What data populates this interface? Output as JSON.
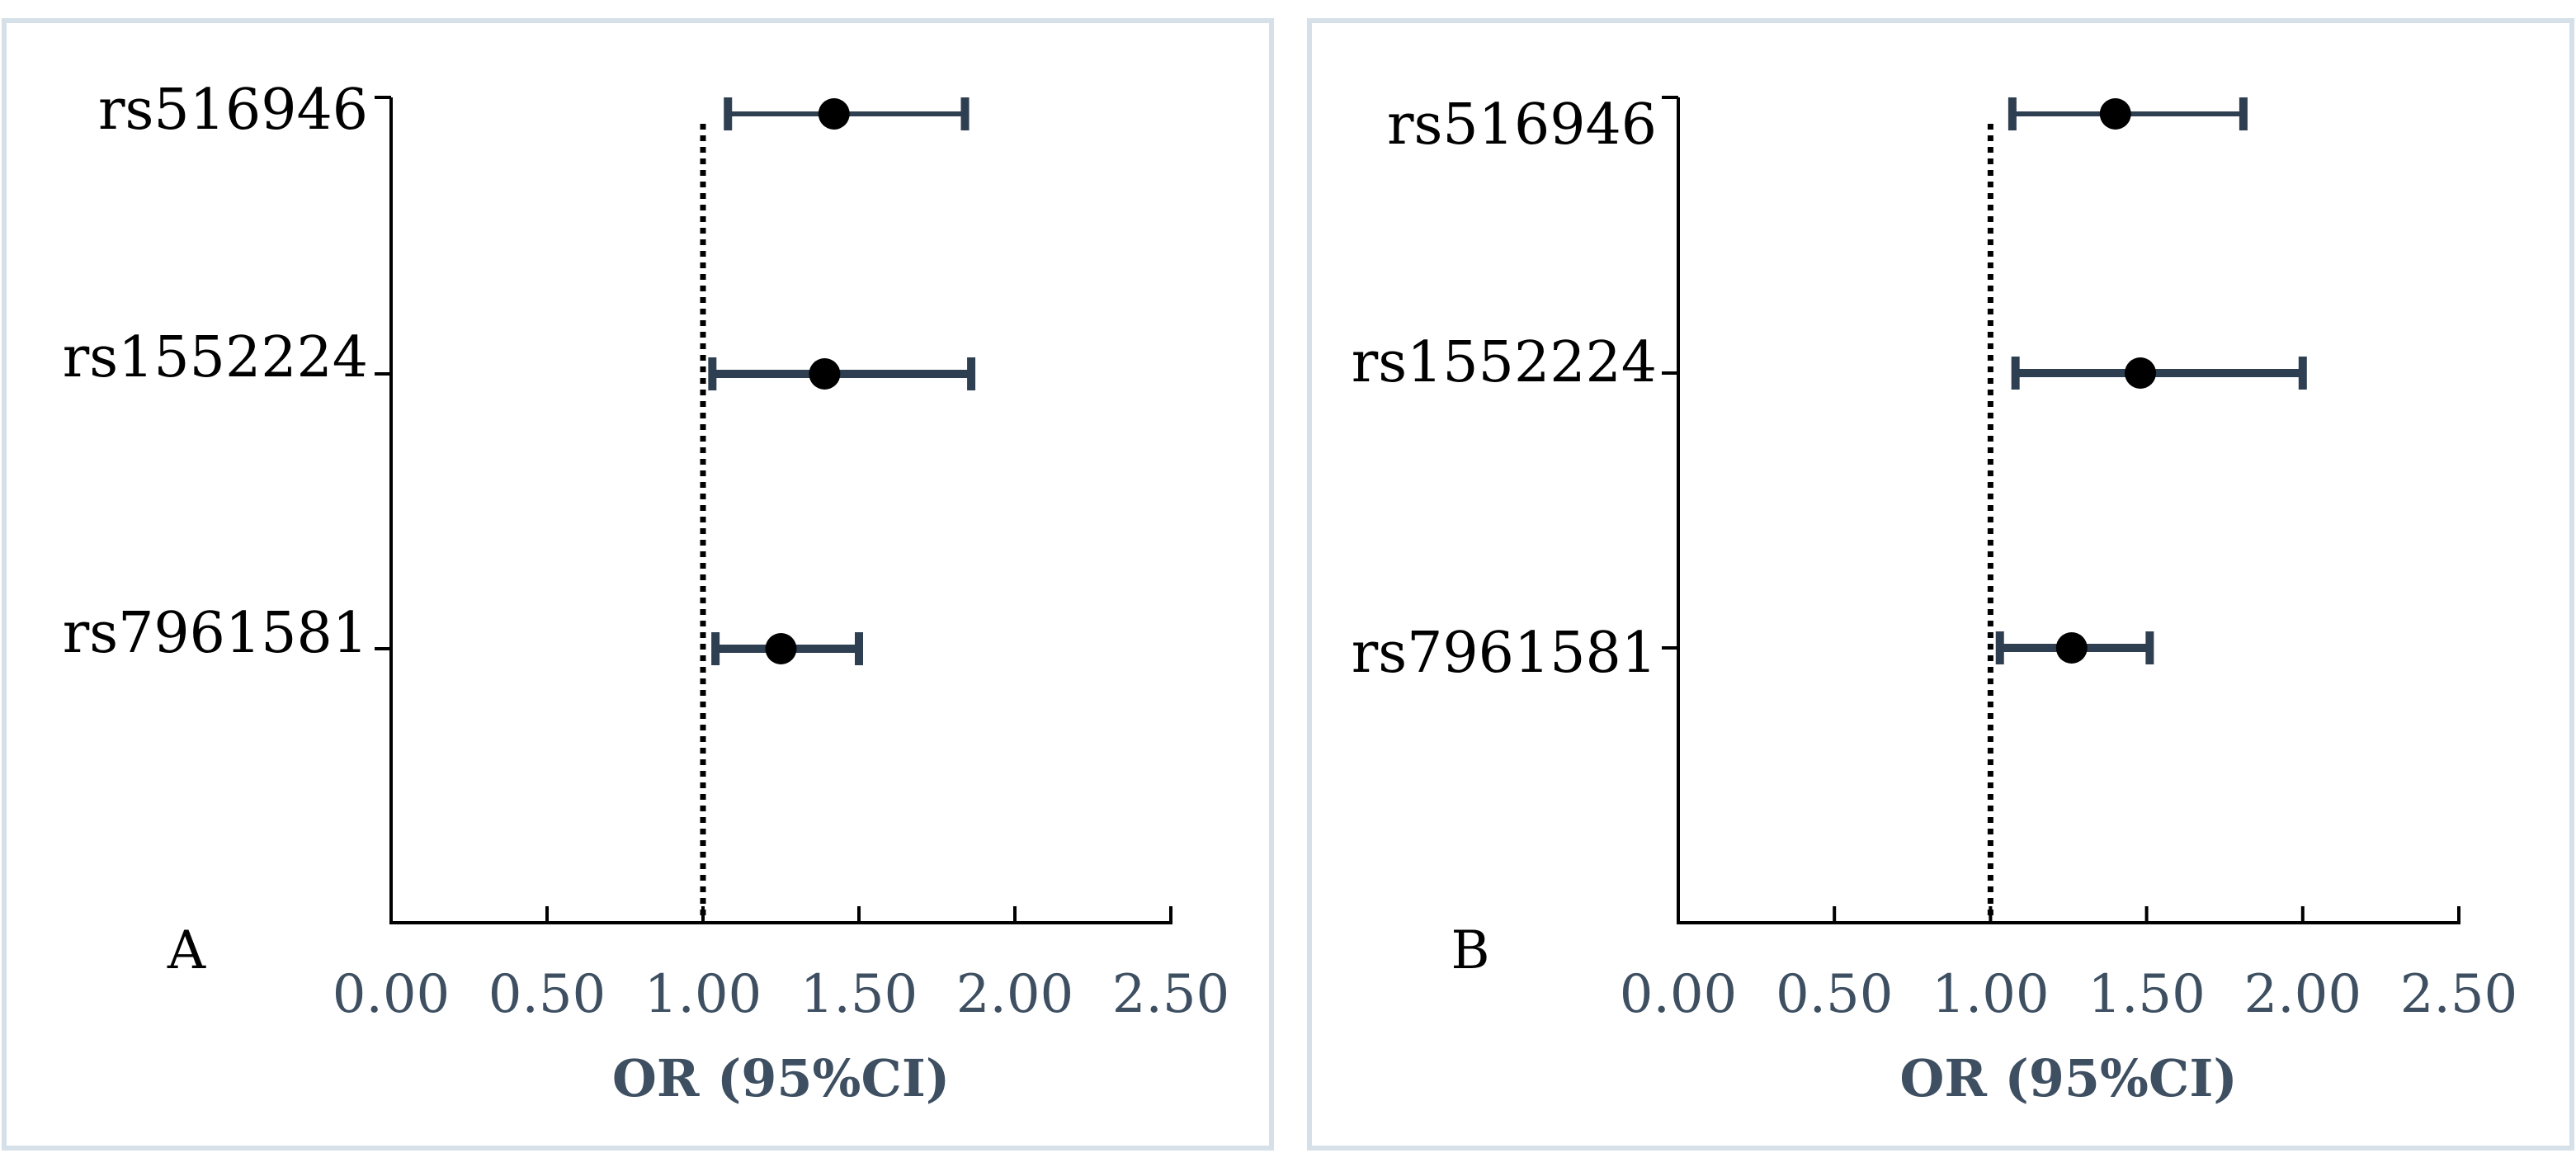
{
  "colors": {
    "errorbar": "#2f3f52",
    "point": "#000000",
    "axis": "#000000",
    "tick_label": "#3d4f61",
    "axis_label": "#3d4f61",
    "panel_border": "#d6e0e8"
  },
  "chart_data": [
    {
      "type": "scatter",
      "panel_label": "A",
      "xlabel": "OR (95%CI)",
      "ylabel": "",
      "xlim": [
        0,
        2.5
      ],
      "xticks": [
        "0.00",
        "0.50",
        "1.00",
        "1.50",
        "2.00",
        "2.50"
      ],
      "reference_line": 1.0,
      "categories": [
        "rs516946",
        "rs1552224",
        "rs7961581"
      ],
      "or": [
        1.42,
        1.39,
        1.25
      ],
      "ci_low": [
        1.08,
        1.03,
        1.04
      ],
      "ci_high": [
        1.84,
        1.86,
        1.5
      ],
      "grid": false
    },
    {
      "type": "scatter",
      "panel_label": "B",
      "xlabel": "OR (95%CI)",
      "ylabel": "",
      "xlim": [
        0,
        2.5
      ],
      "xticks": [
        "0.00",
        "0.50",
        "1.00",
        "1.50",
        "2.00",
        "2.50"
      ],
      "reference_line": 1.0,
      "categories": [
        "rs516946",
        "rs1552224",
        "rs7961581"
      ],
      "or": [
        1.4,
        1.48,
        1.26
      ],
      "ci_low": [
        1.07,
        1.08,
        1.03
      ],
      "ci_high": [
        1.81,
        2.0,
        1.51
      ],
      "grid": false
    }
  ]
}
